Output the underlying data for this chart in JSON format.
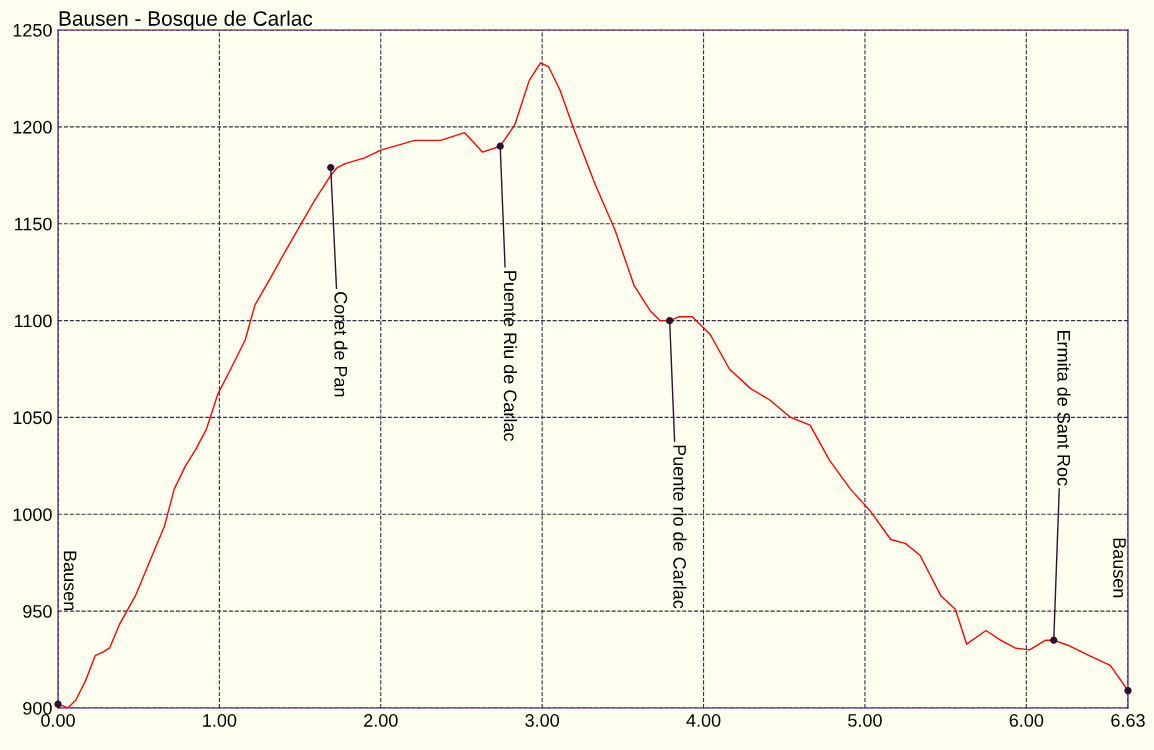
{
  "chart_data": {
    "type": "line",
    "title": "Bausen - Bosque de Carlac",
    "xlim": [
      0,
      6.63
    ],
    "ylim": [
      900,
      1250
    ],
    "xticks": [
      {
        "value": 0,
        "label": "0.00"
      },
      {
        "value": 1,
        "label": "1.00"
      },
      {
        "value": 2,
        "label": "2.00"
      },
      {
        "value": 3,
        "label": "3.00"
      },
      {
        "value": 4,
        "label": "4.00"
      },
      {
        "value": 5,
        "label": "5.00"
      },
      {
        "value": 6,
        "label": "6.00"
      },
      {
        "value": 6.63,
        "label": "6.63"
      }
    ],
    "yticks": [
      900,
      950,
      1000,
      1050,
      1100,
      1150,
      1200,
      1250
    ],
    "grid": true,
    "series": [
      {
        "color": "#ff0000",
        "x": [
          0,
          0.06,
          0.11,
          0.17,
          0.23,
          0.28,
          0.32,
          0.38,
          0.48,
          0.57,
          0.66,
          0.72,
          0.79,
          0.85,
          0.92,
          0.99,
          1.07,
          1.16,
          1.22,
          1.31,
          1.41,
          1.5,
          1.59,
          1.69,
          1.73,
          1.78,
          1.9,
          2.0,
          2.21,
          2.37,
          2.52,
          2.63,
          2.74,
          2.83,
          2.92,
          2.99,
          3.04,
          3.11,
          3.2,
          3.33,
          3.45,
          3.57,
          3.67,
          3.73,
          3.79,
          3.85,
          3.93,
          4.04,
          4.16,
          4.29,
          4.41,
          4.54,
          4.66,
          4.78,
          4.91,
          5.03,
          5.16,
          5.25,
          5.34,
          5.47,
          5.56,
          5.63,
          5.75,
          5.84,
          5.93,
          6.02,
          6.12,
          6.17,
          6.27,
          6.39,
          6.52,
          6.63
        ],
        "values": [
          902,
          900,
          904,
          914,
          927,
          929,
          931,
          943,
          958,
          976,
          994,
          1013,
          1025,
          1033,
          1044,
          1062,
          1075,
          1090,
          1108,
          1121,
          1136,
          1149,
          1162,
          1175,
          1179,
          1181,
          1184,
          1188,
          1193,
          1193,
          1197,
          1187,
          1190,
          1201,
          1224,
          1233,
          1231,
          1219,
          1198,
          1170,
          1147,
          1118,
          1105,
          1100,
          1100,
          1102,
          1102,
          1093,
          1075,
          1065,
          1059,
          1050,
          1046,
          1028,
          1013,
          1002,
          987,
          985,
          979,
          958,
          951,
          933,
          940,
          935,
          931,
          930,
          935,
          935,
          932,
          927,
          922,
          909
        ]
      },
      {
        "type": "scatter",
        "color": "#301030",
        "marker": "circle",
        "x": [
          0,
          1.69,
          2.74,
          3.79,
          6.17,
          6.63
        ],
        "values": [
          902,
          1179,
          1190,
          1100,
          935,
          909
        ]
      }
    ],
    "annotations": [
      "Bausen",
      {
        "text": "Coret de Pan",
        "x": 1.69,
        "y": 1179
      },
      {
        "text": "Puente Riu de Carlac",
        "x": 2.74,
        "y": 1190
      },
      {
        "text": "Puente rio de Carlac",
        "x": 3.79,
        "y": 1100
      },
      {
        "text": "Ermita de Sant Roc",
        "x": 6.17,
        "y": 935
      },
      "Bausen"
    ]
  }
}
